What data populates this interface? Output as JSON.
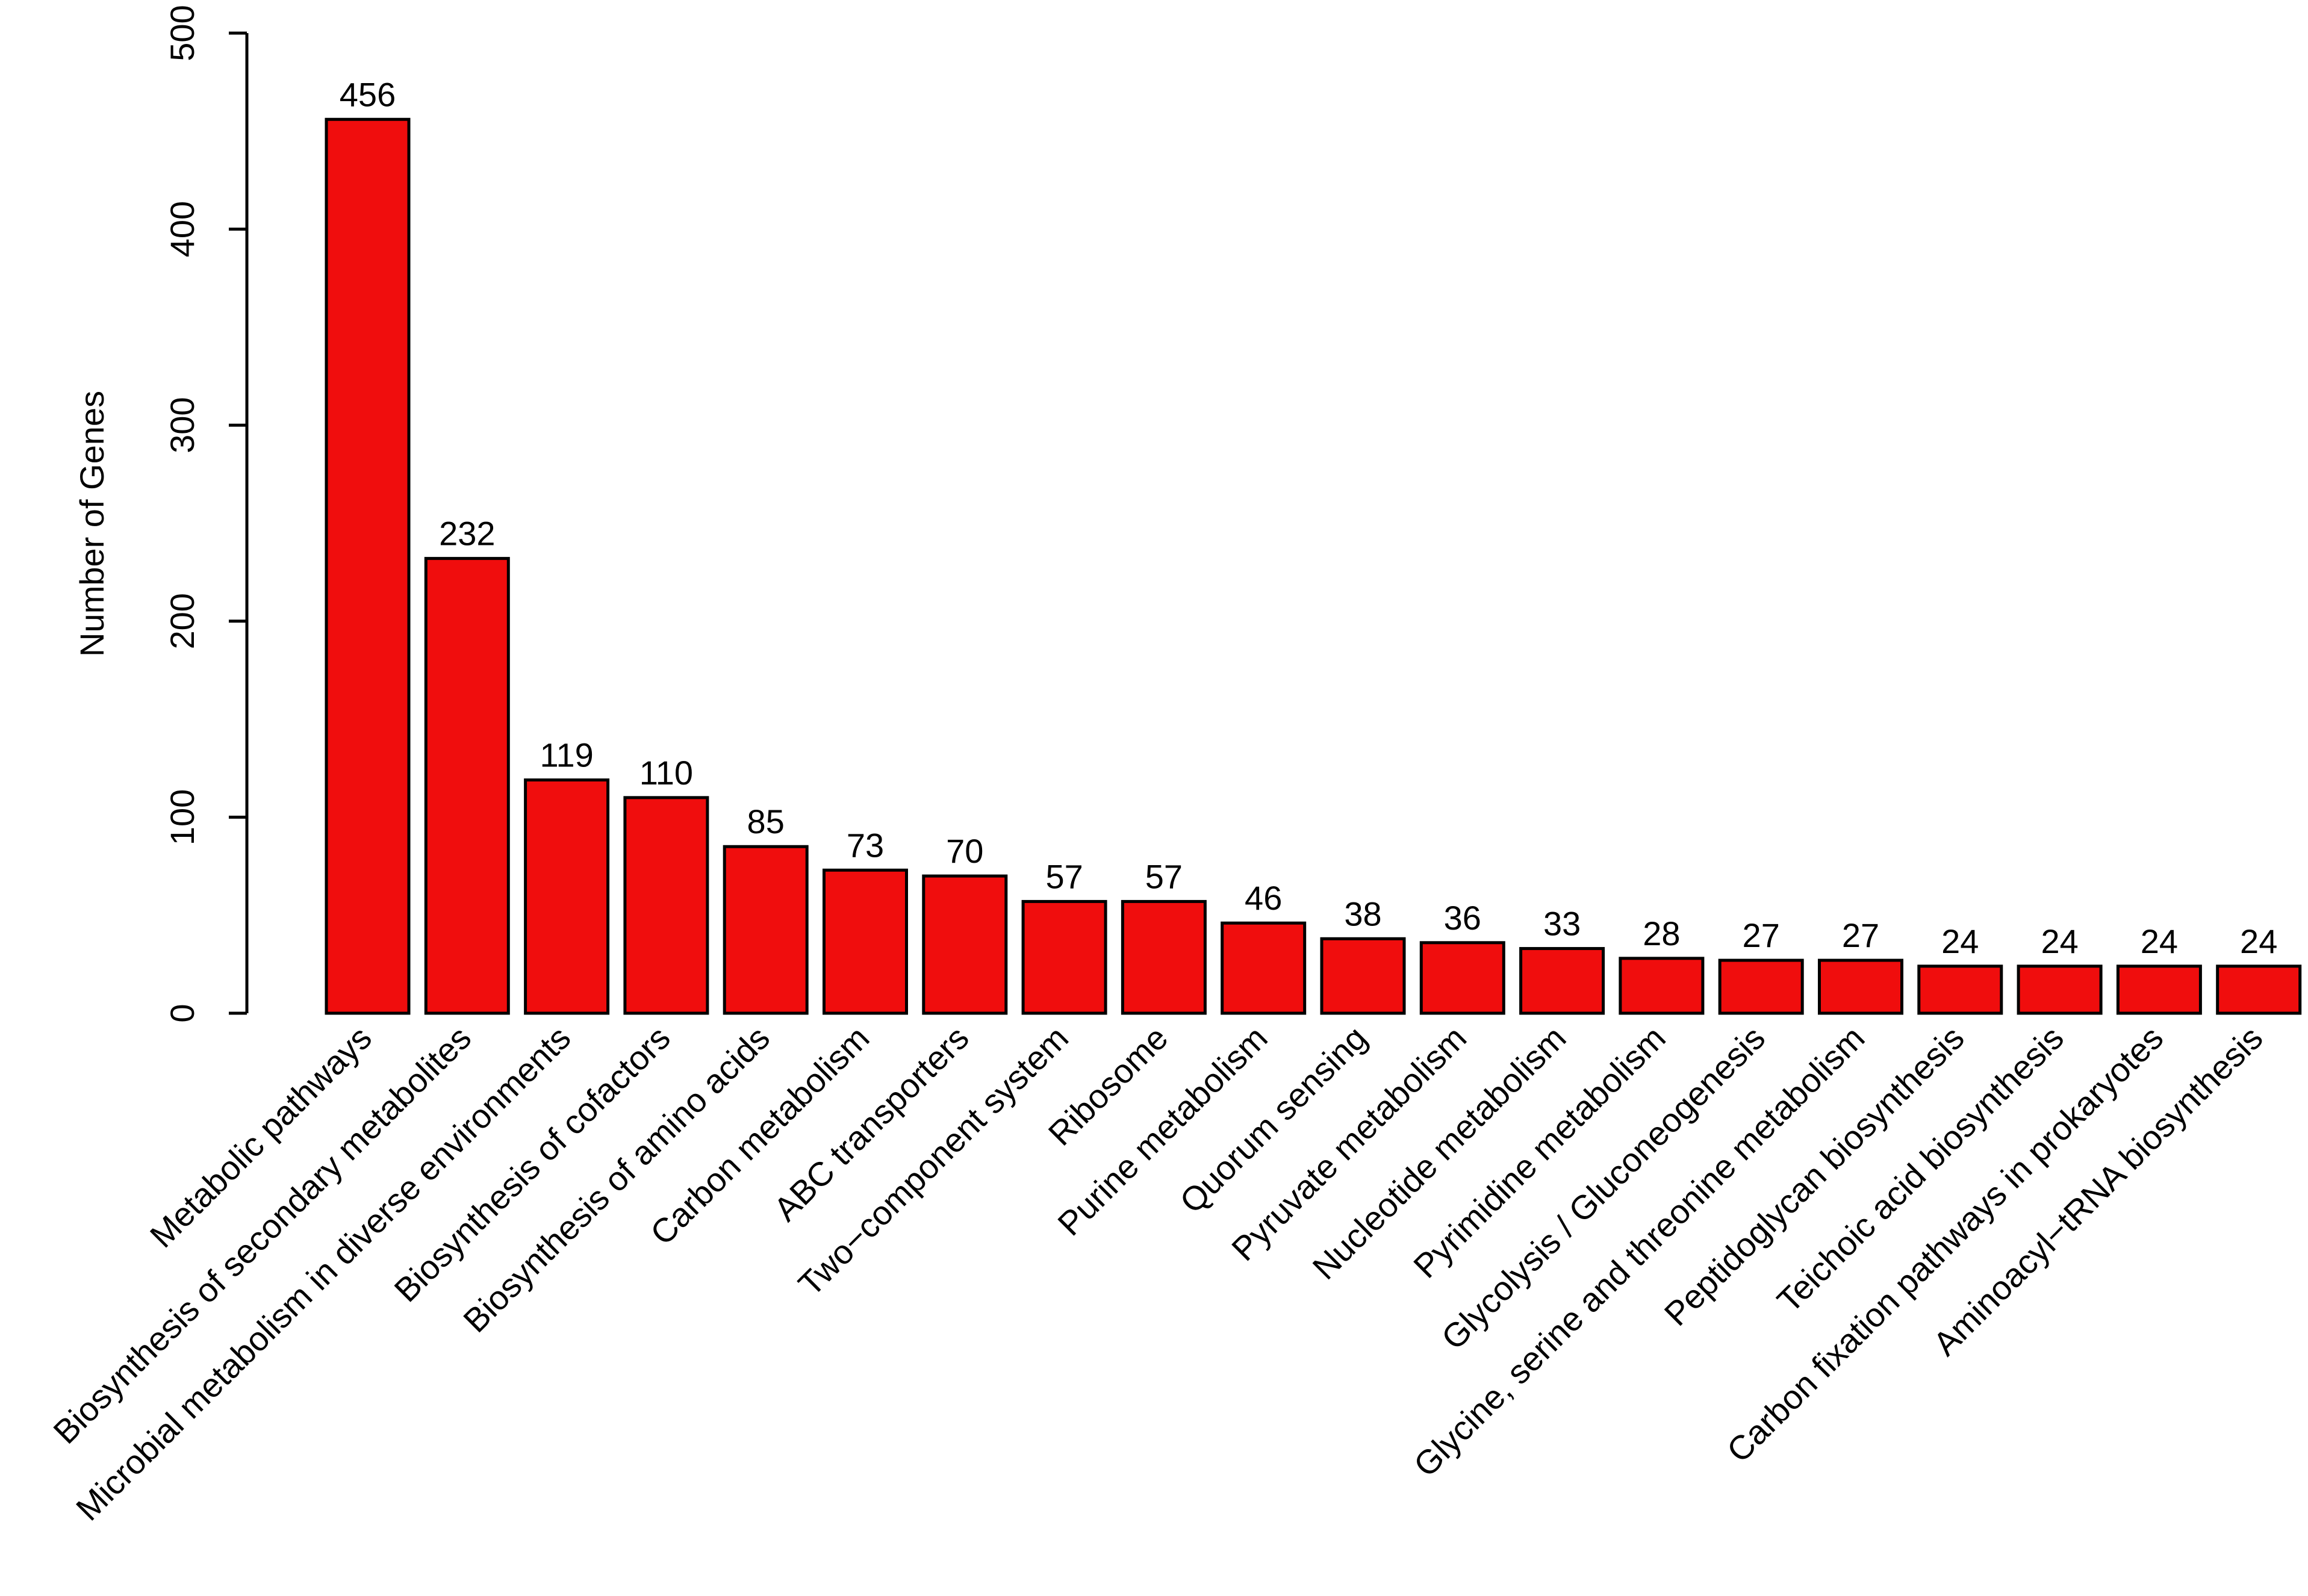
{
  "chart_data": {
    "type": "bar",
    "title": "",
    "xlabel": "",
    "ylabel": "Number of Genes",
    "ylim": [
      0,
      500
    ],
    "yticks": [
      0,
      100,
      200,
      300,
      400,
      500
    ],
    "grid": false,
    "bar_color": "#f00d0d",
    "categories": [
      "Metabolic pathways",
      "Biosynthesis of secondary metabolites",
      "Microbial metabolism in diverse environments",
      "Biosynthesis of cofactors",
      "Biosynthesis of amino acids",
      "Carbon metabolism",
      "ABC transporters",
      "Two−component system",
      "Ribosome",
      "Purine metabolism",
      "Quorum sensing",
      "Pyruvate metabolism",
      "Nucleotide metabolism",
      "Pyrimidine metabolism",
      "Glycolysis / Gluconeogenesis",
      "Glycine, serine and threonine metabolism",
      "Peptidoglycan biosynthesis",
      "Teichoic acid biosynthesis",
      "Carbon fixation pathways in prokaryotes",
      "Aminoacyl−tRNA biosynthesis"
    ],
    "values": [
      456,
      232,
      119,
      110,
      85,
      73,
      70,
      57,
      57,
      46,
      38,
      36,
      33,
      28,
      27,
      27,
      24,
      24,
      24,
      24
    ]
  }
}
